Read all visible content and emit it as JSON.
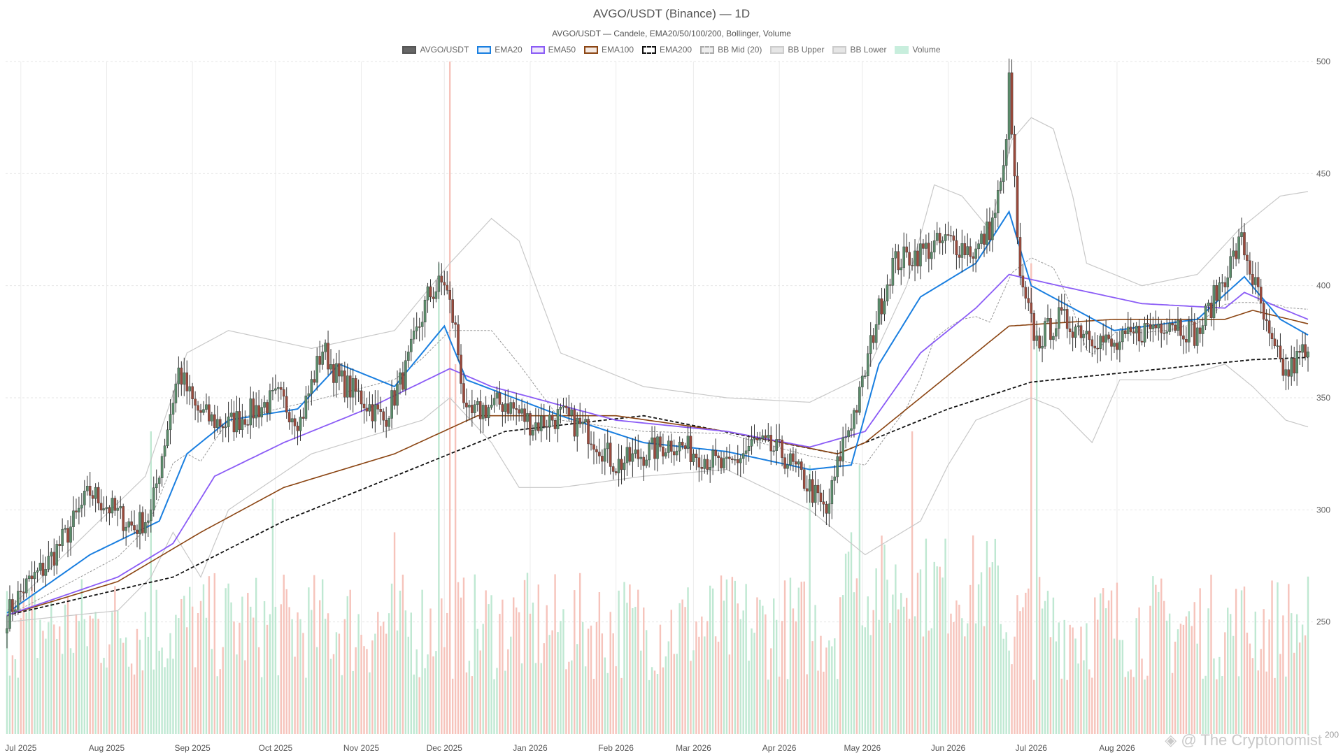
{
  "chart_data": {
    "type": "candlestick",
    "title": "AVGO/USDT (Binance) — 1D",
    "subtitle": "AVGO/USDT — Candele, EMA20/50/100/200, Bollinger, Volume",
    "x_tick_labels": [
      "Jul 2025",
      "Aug 2025",
      "Sep 2025",
      "Oct 2025",
      "Nov 2025",
      "Dec 2025",
      "Jan 2026",
      "Feb 2026",
      "Mar 2026",
      "Apr 2026",
      "May 2026",
      "Jun 2026",
      "Jul 2026",
      "Aug 2026"
    ],
    "y_ticks": [
      250,
      300,
      350,
      400,
      450,
      500
    ],
    "y_range": [
      200,
      500
    ],
    "y_bottom_label": "200",
    "grid": true,
    "legend_position": "top-center",
    "legend": [
      {
        "label": "AVGO/USDT",
        "color": "#555555",
        "fill": "#666666",
        "style": "solid"
      },
      {
        "label": "EMA20",
        "color": "#1a7fe0",
        "fill": "#e8f1fb",
        "style": "solid"
      },
      {
        "label": "EMA50",
        "color": "#8b5cf6",
        "fill": "#efe8fc",
        "style": "solid"
      },
      {
        "label": "EMA100",
        "color": "#8b4513",
        "fill": "#f4e9e2",
        "style": "solid"
      },
      {
        "label": "EMA200",
        "color": "#111111",
        "fill": "#ffffff",
        "style": "dashed"
      },
      {
        "label": "BB Mid (20)",
        "color": "#aaaaaa",
        "fill": "#eeeeee",
        "style": "dashed"
      },
      {
        "label": "BB Upper",
        "color": "#cccccc",
        "fill": "#e6e6e6",
        "style": "solid"
      },
      {
        "label": "BB Lower",
        "color": "#cccccc",
        "fill": "#e6e6e6",
        "style": "solid"
      },
      {
        "label": "Volume",
        "color": "#c8eedd",
        "fill": "#c8eedd",
        "style": "solid"
      }
    ],
    "colors": {
      "up": "#5b8c6b",
      "down": "#9b4a3c",
      "volume_up": "#bfe8d2",
      "volume_down": "#f6c3bb",
      "bb": "#c8c8c8"
    },
    "price_anchors": [
      [
        0,
        253
      ],
      [
        6,
        265
      ],
      [
        14,
        275
      ],
      [
        22,
        290
      ],
      [
        30,
        308
      ],
      [
        38,
        300
      ],
      [
        46,
        292
      ],
      [
        52,
        298
      ],
      [
        56,
        325
      ],
      [
        62,
        362
      ],
      [
        68,
        345
      ],
      [
        74,
        340
      ],
      [
        80,
        338
      ],
      [
        90,
        345
      ],
      [
        98,
        350
      ],
      [
        106,
        340
      ],
      [
        114,
        372
      ],
      [
        120,
        358
      ],
      [
        128,
        350
      ],
      [
        136,
        340
      ],
      [
        144,
        362
      ],
      [
        152,
        395
      ],
      [
        158,
        402
      ],
      [
        162,
        380
      ],
      [
        166,
        340
      ],
      [
        172,
        345
      ],
      [
        180,
        348
      ],
      [
        190,
        338
      ],
      [
        200,
        342
      ],
      [
        210,
        335
      ],
      [
        220,
        320
      ],
      [
        230,
        325
      ],
      [
        240,
        330
      ],
      [
        250,
        325
      ],
      [
        260,
        318
      ],
      [
        270,
        330
      ],
      [
        280,
        325
      ],
      [
        290,
        310
      ],
      [
        296,
        298
      ],
      [
        302,
        330
      ],
      [
        308,
        350
      ],
      [
        314,
        385
      ],
      [
        320,
        410
      ],
      [
        330,
        415
      ],
      [
        340,
        420
      ],
      [
        350,
        415
      ],
      [
        356,
        428
      ],
      [
        360,
        450
      ],
      [
        362,
        490
      ],
      [
        366,
        400
      ],
      [
        372,
        375
      ],
      [
        380,
        385
      ],
      [
        390,
        380
      ],
      [
        400,
        372
      ],
      [
        410,
        380
      ],
      [
        420,
        385
      ],
      [
        430,
        378
      ],
      [
        440,
        405
      ],
      [
        446,
        420
      ],
      [
        452,
        395
      ],
      [
        456,
        375
      ],
      [
        462,
        360
      ],
      [
        468,
        370
      ],
      [
        470,
        367
      ]
    ],
    "ema20_anchors": [
      [
        0,
        254
      ],
      [
        30,
        280
      ],
      [
        55,
        295
      ],
      [
        65,
        325
      ],
      [
        80,
        340
      ],
      [
        105,
        345
      ],
      [
        120,
        365
      ],
      [
        140,
        355
      ],
      [
        158,
        382
      ],
      [
        166,
        358
      ],
      [
        200,
        342
      ],
      [
        230,
        330
      ],
      [
        260,
        326
      ],
      [
        290,
        318
      ],
      [
        305,
        320
      ],
      [
        315,
        365
      ],
      [
        330,
        395
      ],
      [
        350,
        410
      ],
      [
        362,
        433
      ],
      [
        370,
        400
      ],
      [
        400,
        380
      ],
      [
        430,
        385
      ],
      [
        447,
        404
      ],
      [
        460,
        385
      ],
      [
        470,
        378
      ]
    ],
    "ema50_anchors": [
      [
        0,
        253
      ],
      [
        40,
        270
      ],
      [
        60,
        285
      ],
      [
        75,
        315
      ],
      [
        100,
        330
      ],
      [
        130,
        345
      ],
      [
        160,
        363
      ],
      [
        175,
        355
      ],
      [
        220,
        340
      ],
      [
        260,
        335
      ],
      [
        290,
        328
      ],
      [
        310,
        335
      ],
      [
        330,
        370
      ],
      [
        350,
        390
      ],
      [
        362,
        405
      ],
      [
        380,
        400
      ],
      [
        410,
        392
      ],
      [
        440,
        390
      ],
      [
        447,
        397
      ],
      [
        460,
        390
      ],
      [
        470,
        385
      ]
    ],
    "ema100_anchors": [
      [
        0,
        253
      ],
      [
        40,
        268
      ],
      [
        70,
        290
      ],
      [
        100,
        310
      ],
      [
        140,
        325
      ],
      [
        170,
        342
      ],
      [
        220,
        342
      ],
      [
        260,
        335
      ],
      [
        300,
        325
      ],
      [
        310,
        330
      ],
      [
        340,
        360
      ],
      [
        362,
        382
      ],
      [
        400,
        385
      ],
      [
        440,
        385
      ],
      [
        450,
        389
      ],
      [
        470,
        383
      ]
    ],
    "ema200_anchors": [
      [
        0,
        253
      ],
      [
        60,
        270
      ],
      [
        100,
        295
      ],
      [
        150,
        320
      ],
      [
        180,
        335
      ],
      [
        230,
        342
      ],
      [
        300,
        325
      ],
      [
        310,
        330
      ],
      [
        340,
        345
      ],
      [
        370,
        357
      ],
      [
        410,
        362
      ],
      [
        450,
        367
      ],
      [
        470,
        368
      ]
    ],
    "bb_upper_anchors": [
      [
        0,
        255
      ],
      [
        50,
        315
      ],
      [
        65,
        370
      ],
      [
        80,
        380
      ],
      [
        110,
        372
      ],
      [
        140,
        380
      ],
      [
        160,
        410
      ],
      [
        175,
        430
      ],
      [
        185,
        420
      ],
      [
        200,
        370
      ],
      [
        230,
        355
      ],
      [
        260,
        350
      ],
      [
        290,
        348
      ],
      [
        310,
        360
      ],
      [
        325,
        400
      ],
      [
        335,
        445
      ],
      [
        345,
        440
      ],
      [
        355,
        425
      ],
      [
        363,
        465
      ],
      [
        370,
        475
      ],
      [
        378,
        470
      ],
      [
        385,
        440
      ],
      [
        390,
        410
      ],
      [
        410,
        400
      ],
      [
        430,
        405
      ],
      [
        445,
        425
      ],
      [
        460,
        440
      ],
      [
        470,
        442
      ]
    ],
    "bb_lower_anchors": [
      [
        0,
        250
      ],
      [
        40,
        255
      ],
      [
        52,
        270
      ],
      [
        60,
        290
      ],
      [
        70,
        270
      ],
      [
        80,
        300
      ],
      [
        110,
        325
      ],
      [
        150,
        340
      ],
      [
        160,
        350
      ],
      [
        175,
        330
      ],
      [
        185,
        310
      ],
      [
        200,
        310
      ],
      [
        230,
        315
      ],
      [
        260,
        318
      ],
      [
        290,
        300
      ],
      [
        300,
        290
      ],
      [
        310,
        280
      ],
      [
        330,
        295
      ],
      [
        340,
        320
      ],
      [
        350,
        340
      ],
      [
        360,
        345
      ],
      [
        370,
        350
      ],
      [
        380,
        345
      ],
      [
        392,
        330
      ],
      [
        402,
        358
      ],
      [
        420,
        358
      ],
      [
        440,
        365
      ],
      [
        450,
        355
      ],
      [
        462,
        340
      ],
      [
        470,
        337
      ]
    ],
    "volume_scale_max": 1000,
    "volume_note": "volume bars spike near Dec 2025, Jun 2026"
  }
}
